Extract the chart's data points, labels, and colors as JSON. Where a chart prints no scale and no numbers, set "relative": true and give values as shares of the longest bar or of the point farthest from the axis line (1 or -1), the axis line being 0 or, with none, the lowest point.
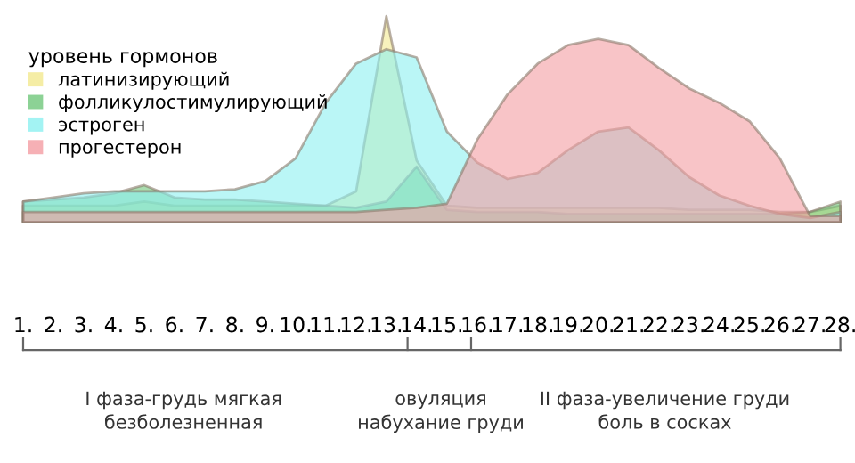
{
  "chart_data": {
    "type": "area",
    "relative": true,
    "legend_title": "уровень гормонов",
    "legend": "top left",
    "categories": [
      "1.",
      "2.",
      "3.",
      "4.",
      "5.",
      "6.",
      "7.",
      "8.",
      "9.",
      "10.",
      "11.",
      "12.",
      "13.",
      "14.",
      "15.",
      "16.",
      "17.",
      "18.",
      "19.",
      "20.",
      "21.",
      "22.",
      "23.",
      "24.",
      "25.",
      "26.",
      "27.",
      "28."
    ],
    "series": [
      {
        "name": "латинизирующий",
        "color": "#f3e98f",
        "values": [
          0.08,
          0.08,
          0.08,
          0.08,
          0.1,
          0.08,
          0.08,
          0.08,
          0.08,
          0.08,
          0.08,
          0.15,
          1.0,
          0.3,
          0.08,
          0.07,
          0.07,
          0.07,
          0.07,
          0.07,
          0.07,
          0.07,
          0.06,
          0.06,
          0.06,
          0.05,
          0.05,
          0.08
        ]
      },
      {
        "name": "фолликулостимулирующий",
        "color": "#6fc77a",
        "values": [
          0.1,
          0.11,
          0.12,
          0.14,
          0.18,
          0.12,
          0.11,
          0.11,
          0.1,
          0.09,
          0.08,
          0.07,
          0.1,
          0.27,
          0.06,
          0.05,
          0.05,
          0.05,
          0.04,
          0.04,
          0.04,
          0.04,
          0.04,
          0.04,
          0.04,
          0.04,
          0.05,
          0.1
        ]
      },
      {
        "name": "эстроген",
        "color": "#8cf0f0",
        "values": [
          0.1,
          0.12,
          0.14,
          0.15,
          0.15,
          0.15,
          0.15,
          0.16,
          0.2,
          0.31,
          0.58,
          0.77,
          0.84,
          0.8,
          0.44,
          0.29,
          0.21,
          0.24,
          0.35,
          0.44,
          0.46,
          0.35,
          0.22,
          0.13,
          0.08,
          0.04,
          0.02,
          0.05
        ]
      },
      {
        "name": "прогестерон",
        "color": "#f49ca2",
        "values": [
          0.05,
          0.05,
          0.05,
          0.05,
          0.05,
          0.05,
          0.05,
          0.05,
          0.05,
          0.05,
          0.05,
          0.05,
          0.06,
          0.07,
          0.09,
          0.4,
          0.62,
          0.77,
          0.86,
          0.89,
          0.86,
          0.75,
          0.65,
          0.58,
          0.49,
          0.31,
          0.03,
          0.03
        ]
      }
    ],
    "annotations": [
      "I фаза-грудь мягкая\nбезболезненная",
      "овуляция\nнабухание груди",
      "II фаза-увеличение груди\nболь в сосках"
    ]
  }
}
